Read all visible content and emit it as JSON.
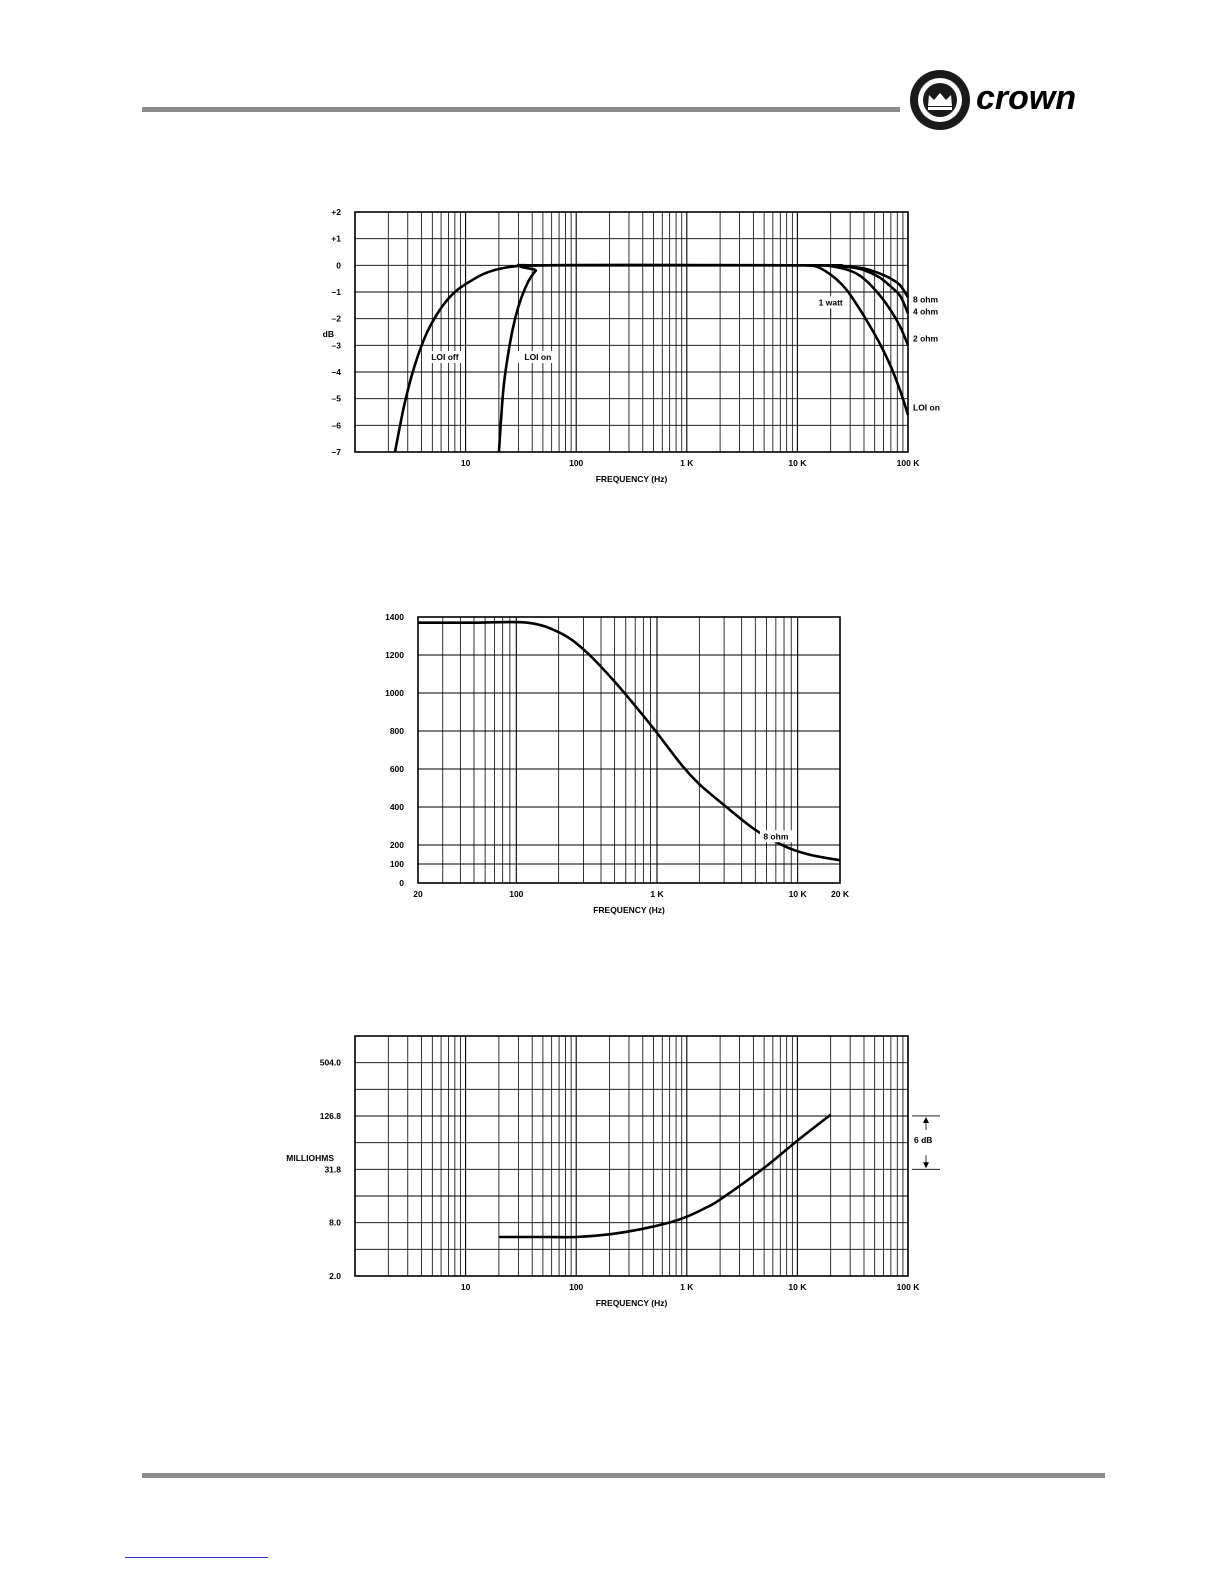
{
  "header": {
    "logo_text": "crown"
  },
  "chart_data": [
    {
      "type": "line",
      "ylabel": "dB",
      "xlabel": "FREQUENCY (Hz)",
      "xscale": "log",
      "xlim": [
        1,
        100000
      ],
      "ylim": [
        -7,
        2
      ],
      "xticks": [
        {
          "value": 10,
          "label": "10"
        },
        {
          "value": 100,
          "label": "100"
        },
        {
          "value": 1000,
          "label": "1 K"
        },
        {
          "value": 10000,
          "label": "10 K"
        },
        {
          "value": 100000,
          "label": "100 K"
        }
      ],
      "yticks": [
        {
          "value": 2,
          "label": "+2"
        },
        {
          "value": 1,
          "label": "+1"
        },
        {
          "value": 0,
          "label": "0"
        },
        {
          "value": -1,
          "label": "–1"
        },
        {
          "value": -2,
          "label": "–2"
        },
        {
          "value": -3,
          "label": "–3"
        },
        {
          "value": -4,
          "label": "–4"
        },
        {
          "value": -5,
          "label": "–5"
        },
        {
          "value": -6,
          "label": "–6"
        },
        {
          "value": -7,
          "label": "–7"
        }
      ],
      "grid": true,
      "series": [
        {
          "name": "LOI off",
          "x": [
            2.3,
            2.8,
            3.5,
            4.5,
            6,
            8,
            11,
            15,
            22,
            35,
            50,
            15000,
            20000
          ],
          "y": [
            -7,
            -5.2,
            -3.7,
            -2.5,
            -1.6,
            -1.0,
            -0.6,
            -0.3,
            -0.1,
            0,
            0,
            0,
            0
          ]
        },
        {
          "name": "LOI on",
          "x": [
            20,
            22,
            25,
            28,
            32,
            37,
            43,
            50,
            15000,
            20000
          ],
          "y": [
            -7,
            -4.6,
            -3.0,
            -2.0,
            -1.2,
            -0.6,
            -0.2,
            0,
            0,
            0
          ]
        },
        {
          "name": "8 ohm",
          "x": [
            20000,
            30000,
            40000,
            55000,
            70000,
            85000,
            100000
          ],
          "y": [
            0,
            -0.05,
            -0.12,
            -0.3,
            -0.5,
            -0.75,
            -1.2
          ]
        },
        {
          "name": "4 ohm",
          "x": [
            20000,
            30000,
            40000,
            55000,
            70000,
            85000,
            100000
          ],
          "y": [
            0,
            -0.07,
            -0.18,
            -0.45,
            -0.8,
            -1.15,
            -1.8
          ]
        },
        {
          "name": "2 ohm",
          "x": [
            15000,
            20000,
            30000,
            40000,
            55000,
            70000,
            85000,
            100000
          ],
          "y": [
            0,
            -0.03,
            -0.2,
            -0.5,
            -1.1,
            -1.7,
            -2.3,
            -3.0
          ]
        },
        {
          "name": "LOI on",
          "x": [
            12000,
            15000,
            20000,
            25000,
            30000,
            40000,
            55000,
            70000,
            85000,
            100000
          ],
          "y": [
            0,
            -0.05,
            -0.35,
            -0.7,
            -1.1,
            -1.9,
            -2.9,
            -3.8,
            -4.7,
            -5.6
          ]
        }
      ],
      "annotations": [
        {
          "text": "LOI  off",
          "x": 6.5,
          "y": -3.55
        },
        {
          "text": "LOI  on",
          "x": 45,
          "y": -3.55
        },
        {
          "text": "1 watt",
          "x": 20000,
          "y": -1.5
        },
        {
          "text": "8 ohm",
          "x": 100000,
          "y": -1.4
        },
        {
          "text": "4 ohm",
          "x": 100000,
          "y": -1.85
        },
        {
          "text": "2 ohm",
          "x": 100000,
          "y": -2.85
        },
        {
          "text": "LOI on",
          "x": 100000,
          "y": -5.45
        }
      ]
    },
    {
      "type": "line",
      "xlabel": "FREQUENCY (Hz)",
      "xscale": "log",
      "xlim": [
        20,
        20000
      ],
      "ylim": [
        0,
        1400
      ],
      "xticks": [
        {
          "value": 20,
          "label": "20"
        },
        {
          "value": 100,
          "label": "100"
        },
        {
          "value": 1000,
          "label": "1 K"
        },
        {
          "value": 10000,
          "label": "10 K"
        },
        {
          "value": 20000,
          "label": "20 K"
        }
      ],
      "yticks": [
        {
          "value": 0,
          "label": "0"
        },
        {
          "value": 100,
          "label": "100"
        },
        {
          "value": 200,
          "label": "200"
        },
        {
          "value": 400,
          "label": "400"
        },
        {
          "value": 600,
          "label": "600"
        },
        {
          "value": 800,
          "label": "800"
        },
        {
          "value": 1000,
          "label": "1000"
        },
        {
          "value": 1200,
          "label": "1200"
        },
        {
          "value": 1400,
          "label": "1400"
        }
      ],
      "grid": true,
      "series": [
        {
          "name": "8 ohm",
          "x": [
            20,
            50,
            120,
            200,
            300,
            500,
            800,
            1000,
            1500,
            2000,
            3000,
            5000,
            8000,
            12000,
            20000
          ],
          "y": [
            1370,
            1370,
            1370,
            1320,
            1230,
            1060,
            880,
            790,
            620,
            520,
            410,
            280,
            195,
            150,
            120
          ]
        }
      ],
      "annotations": [
        {
          "text": "8 ohm",
          "x": 7000,
          "y": 230
        }
      ]
    },
    {
      "type": "line",
      "ylabel": "MILLIOHMS",
      "xlabel": "FREQUENCY (Hz)",
      "xscale": "log",
      "yscale": "log",
      "xlim": [
        1,
        100000
      ],
      "ylim": [
        2.0,
        1008
      ],
      "xticks": [
        {
          "value": 10,
          "label": "10"
        },
        {
          "value": 100,
          "label": "100"
        },
        {
          "value": 1000,
          "label": "1 K"
        },
        {
          "value": 10000,
          "label": "10 K"
        },
        {
          "value": 100000,
          "label": "100 K"
        }
      ],
      "yticks": [
        {
          "value": 2.0,
          "label": "2.0"
        },
        {
          "value": 8.0,
          "label": "8.0"
        },
        {
          "value": 31.8,
          "label": "31.8"
        },
        {
          "value": 126.8,
          "label": "126.8"
        },
        {
          "value": 504.0,
          "label": "504.0"
        }
      ],
      "grid": true,
      "series": [
        {
          "name": "",
          "x": [
            20,
            50,
            100,
            200,
            400,
            700,
            1000,
            1500,
            2000,
            5000,
            10000,
            20000
          ],
          "y": [
            5.5,
            5.5,
            5.5,
            5.9,
            6.8,
            8.0,
            9.3,
            11.8,
            14.5,
            33,
            67,
            131
          ]
        }
      ],
      "annotations": [
        {
          "text": "6 dB",
          "x": 100000,
          "y": 63
        }
      ]
    }
  ]
}
